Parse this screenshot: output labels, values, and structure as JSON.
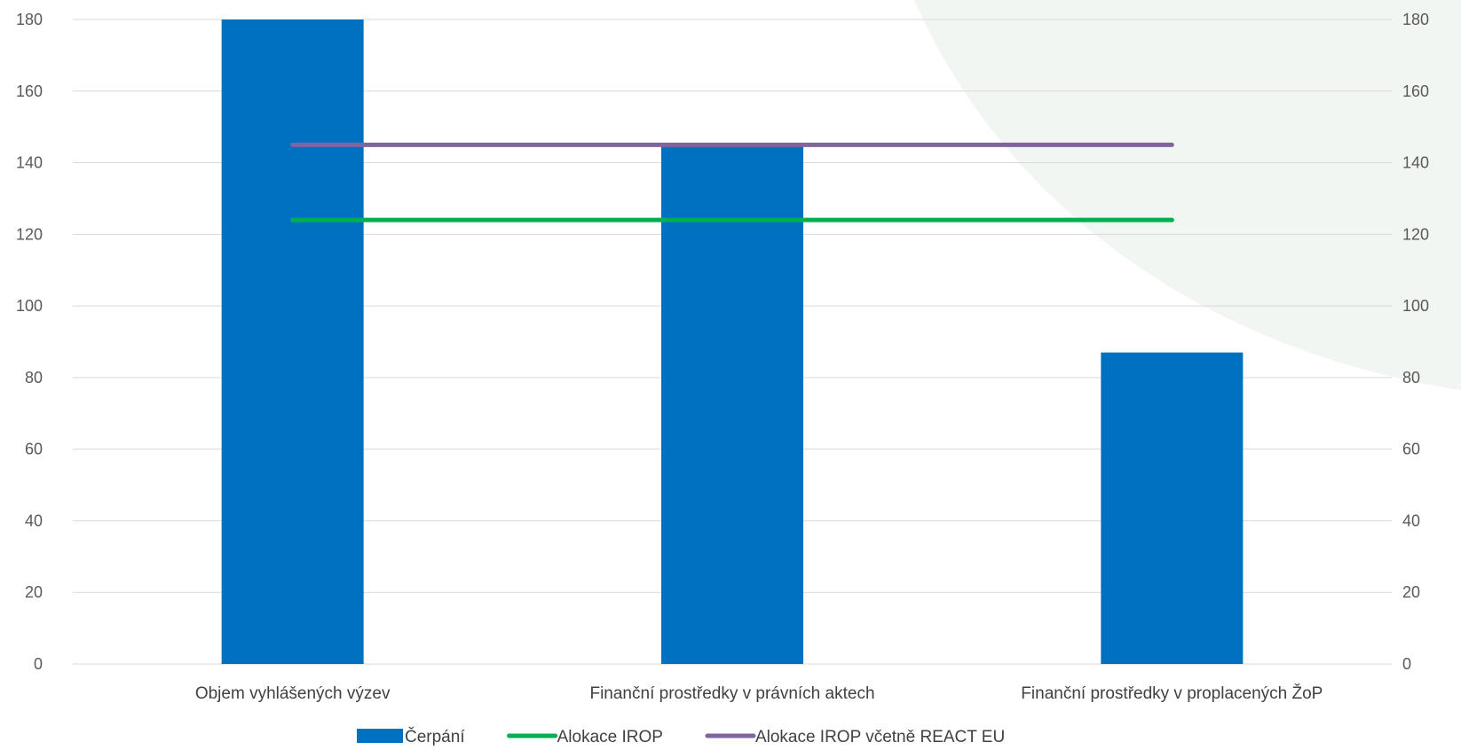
{
  "chart_data": {
    "type": "bar",
    "categories": [
      "Objem vyhlášených výzev",
      "Finanční prostředky v právních aktech",
      "Finanční prostředky v proplacených ŽoP"
    ],
    "series": [
      {
        "name": "Čerpání",
        "type": "bar",
        "values": [
          180,
          145,
          87
        ],
        "color": "#0070C0"
      },
      {
        "name": "Alokace IROP",
        "type": "line",
        "values": [
          124,
          124,
          124
        ],
        "color": "#00B050"
      },
      {
        "name": "Alokace IROP včetně REACT EU",
        "type": "line",
        "values": [
          145,
          145,
          145
        ],
        "color": "#8064A2"
      }
    ],
    "ylim": [
      0,
      180
    ],
    "yticks": [
      0,
      20,
      40,
      60,
      80,
      100,
      120,
      140,
      160,
      180
    ],
    "secondary_yticks": [
      0,
      20,
      40,
      60,
      80,
      100,
      120,
      140,
      160,
      180
    ],
    "grid": true,
    "legend_position": "bottom",
    "background_shape_color": "#F2F6F2"
  }
}
